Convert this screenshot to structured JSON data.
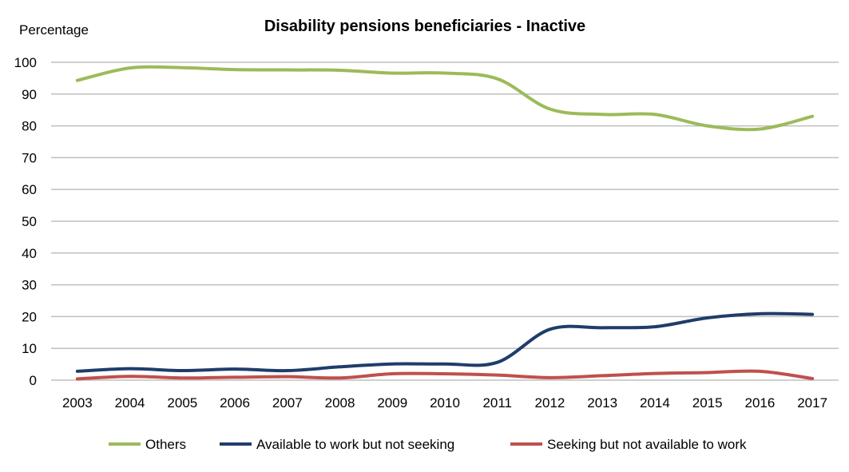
{
  "chart_data": {
    "type": "line",
    "title": "Disability pensions beneficiaries - Inactive",
    "ylabel": "Percentage",
    "xlabel": "",
    "x": [
      "2003",
      "2004",
      "2005",
      "2006",
      "2007",
      "2008",
      "2009",
      "2010",
      "2011",
      "2012",
      "2013",
      "2014",
      "2015",
      "2016",
      "2017"
    ],
    "ylim": [
      0,
      100
    ],
    "yticks": [
      0,
      10,
      20,
      30,
      40,
      50,
      60,
      70,
      80,
      90,
      100
    ],
    "grid": true,
    "legend_position": "bottom",
    "series": [
      {
        "name": "Others",
        "color": "#9bbb59",
        "values": [
          94.3,
          98.2,
          98.3,
          97.7,
          97.6,
          97.5,
          96.6,
          96.6,
          94.8,
          85.3,
          83.6,
          83.6,
          80.0,
          79.0,
          83.0
        ]
      },
      {
        "name": "Available to work but not seeking",
        "color": "#1f3d6b",
        "values": [
          2.8,
          3.6,
          3.0,
          3.5,
          3.0,
          4.2,
          5.1,
          5.1,
          5.6,
          16.0,
          16.5,
          16.8,
          19.6,
          20.9,
          20.7
        ]
      },
      {
        "name": "Seeking but not available to work",
        "color": "#c0504d",
        "values": [
          0.4,
          1.2,
          0.7,
          0.9,
          1.1,
          0.7,
          2.0,
          2.0,
          1.6,
          0.8,
          1.4,
          2.1,
          2.4,
          2.8,
          0.5
        ]
      }
    ]
  }
}
